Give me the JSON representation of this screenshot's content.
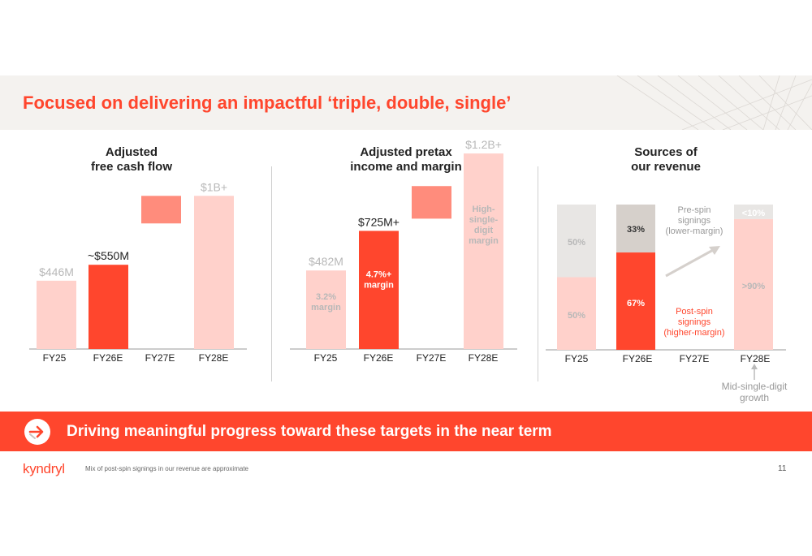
{
  "slide": {
    "title": "Focused on delivering an impactful ‘triple, double, single’",
    "cta": "Driving meaningful progress toward these targets in the near term",
    "logo": "kyndryl",
    "footnote": "Mix of post-spin signings in our revenue are approximate",
    "page_number": "11"
  },
  "colors": {
    "accent": "#ff462d",
    "light_pink": "#ffd1cb",
    "mid_salmon": "#ff8c7c",
    "gray_light": "#e8e6e4",
    "gray_mid": "#d6d0cb",
    "label_gray": "#b8b8b8"
  },
  "chart_data": [
    {
      "type": "bar",
      "title": "Adjusted\nfree cash flow",
      "title_lines": [
        "Adjusted",
        "free cash flow"
      ],
      "unit": "$M",
      "categories": [
        "FY25",
        "FY26E",
        "FY27E",
        "FY28E"
      ],
      "bars": [
        {
          "category": "FY25",
          "value": 446,
          "label": "$446M",
          "style": "light"
        },
        {
          "category": "FY26E",
          "value": 550,
          "label": "~$550M",
          "style": "accent"
        },
        {
          "category": "FY27E",
          "range": [
            820,
            1000
          ],
          "label": "",
          "style": "mid"
        },
        {
          "category": "FY28E",
          "value": 1000,
          "label": "$1B+",
          "style": "light"
        }
      ],
      "ylim": [
        0,
        1240
      ]
    },
    {
      "type": "bar",
      "title": "Adjusted pretax\nincome and margin",
      "title_lines": [
        "Adjusted pretax",
        "income and margin"
      ],
      "unit": "$M",
      "categories": [
        "FY25",
        "FY26E",
        "FY27E",
        "FY28E"
      ],
      "bars": [
        {
          "category": "FY25",
          "value": 482,
          "label": "$482M",
          "inner": [
            "3.2%",
            "margin"
          ],
          "style": "light"
        },
        {
          "category": "FY26E",
          "value": 725,
          "label": "$725M+",
          "inner": [
            "4.7%+",
            "margin"
          ],
          "style": "accent"
        },
        {
          "category": "FY27E",
          "range": [
            800,
            1000
          ],
          "label": "",
          "style": "mid"
        },
        {
          "category": "FY28E",
          "value": 1200,
          "label": "$1.2B+",
          "inner": [
            "High-",
            "single-",
            "digit",
            "margin"
          ],
          "style": "light"
        }
      ],
      "ylim": [
        0,
        1320
      ]
    },
    {
      "type": "stacked_bar",
      "title": "Sources of\nour revenue",
      "title_lines": [
        "Sources of",
        "our revenue"
      ],
      "categories": [
        "FY25",
        "FY26E",
        "FY27E",
        "FY28E"
      ],
      "series": [
        {
          "name": "Post-spin signings (higher-margin)",
          "values": [
            50,
            67,
            null,
            90
          ]
        },
        {
          "name": "Pre-spin signings (lower-margin)",
          "values": [
            50,
            33,
            null,
            10
          ]
        }
      ],
      "segment_labels": [
        {
          "category": "FY25",
          "bottom": "50%",
          "top": "50%"
        },
        {
          "category": "FY26E",
          "bottom": "67%",
          "top": "33%"
        },
        {
          "category": "FY28E",
          "bottom": ">90%",
          "top": "<10%"
        }
      ],
      "annotations": {
        "pre_spin": [
          "Pre-spin",
          "signings",
          "(lower-margin)"
        ],
        "post_spin": [
          "Post-spin",
          "signings",
          "(higher-margin)"
        ],
        "growth": [
          "Mid-single-digit",
          "growth"
        ]
      }
    }
  ]
}
